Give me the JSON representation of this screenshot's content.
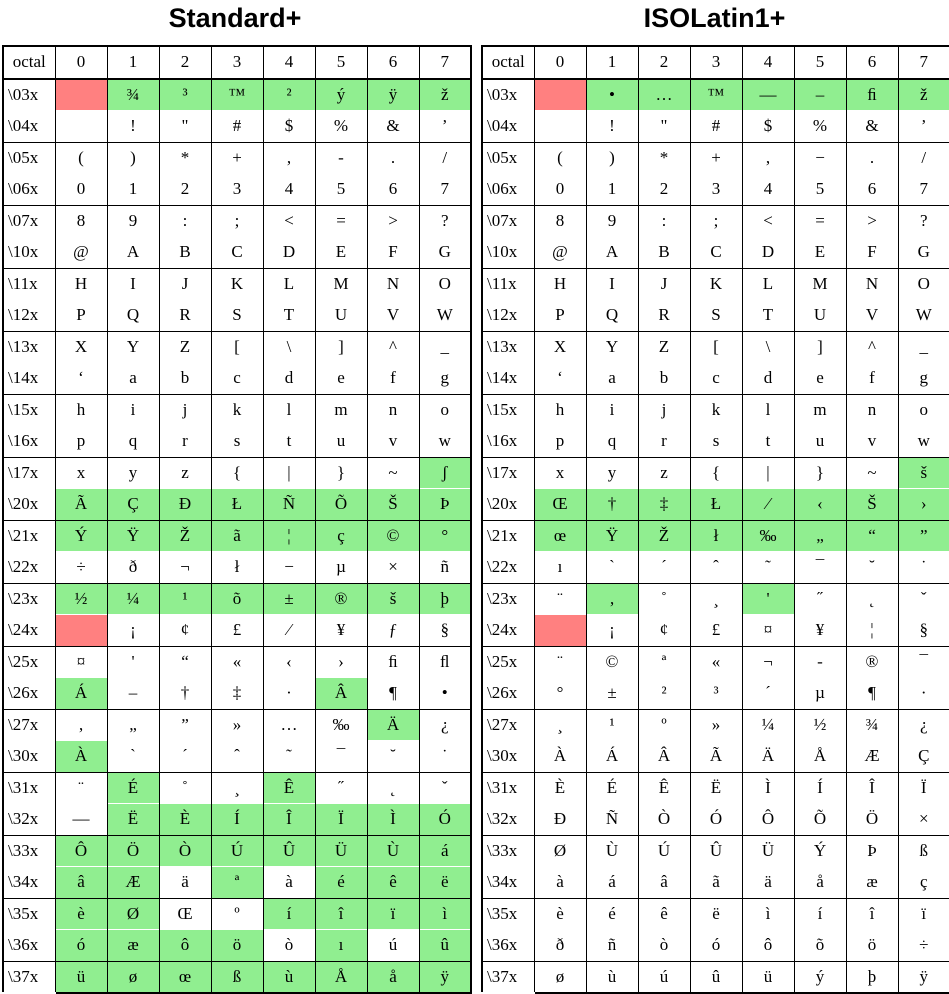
{
  "titles": {
    "left": "Standard+",
    "right": "ISOLatin1+"
  },
  "header": [
    "octal",
    "0",
    "1",
    "2",
    "3",
    "4",
    "5",
    "6",
    "7"
  ],
  "rows": [
    "\\03x",
    "\\04x",
    "\\05x",
    "\\06x",
    "\\07x",
    "\\10x",
    "\\11x",
    "\\12x",
    "\\13x",
    "\\14x",
    "\\15x",
    "\\16x",
    "\\17x",
    "\\20x",
    "\\21x",
    "\\22x",
    "\\23x",
    "\\24x",
    "\\25x",
    "\\26x",
    "\\27x",
    "\\30x",
    "\\31x",
    "\\32x",
    "\\33x",
    "\\34x",
    "\\35x",
    "\\36x",
    "\\37x"
  ],
  "colors": {
    "highlight": "#90ee90",
    "undefined": "#ff8080"
  },
  "standard": [
    [
      "",
      "¾",
      "³",
      "™",
      "²",
      "ý",
      "ÿ",
      "ž"
    ],
    [
      "",
      "!",
      "\"",
      "#",
      "$",
      "%",
      "&",
      "’"
    ],
    [
      "(",
      ")",
      "*",
      "+",
      ",",
      "-",
      ".",
      "/"
    ],
    [
      "0",
      "1",
      "2",
      "3",
      "4",
      "5",
      "6",
      "7"
    ],
    [
      "8",
      "9",
      ":",
      ";",
      "<",
      "=",
      ">",
      "?"
    ],
    [
      "@",
      "A",
      "B",
      "C",
      "D",
      "E",
      "F",
      "G"
    ],
    [
      "H",
      "I",
      "J",
      "K",
      "L",
      "M",
      "N",
      "O"
    ],
    [
      "P",
      "Q",
      "R",
      "S",
      "T",
      "U",
      "V",
      "W"
    ],
    [
      "X",
      "Y",
      "Z",
      "[",
      "\\",
      "]",
      "^",
      "_"
    ],
    [
      "‘",
      "a",
      "b",
      "c",
      "d",
      "e",
      "f",
      "g"
    ],
    [
      "h",
      "i",
      "j",
      "k",
      "l",
      "m",
      "n",
      "o"
    ],
    [
      "p",
      "q",
      "r",
      "s",
      "t",
      "u",
      "v",
      "w"
    ],
    [
      "x",
      "y",
      "z",
      "{",
      "|",
      "}",
      "~",
      "ʃ"
    ],
    [
      "Ã",
      "Ç",
      "Đ",
      "Ł",
      "Ñ",
      "Õ",
      "Š",
      "Þ"
    ],
    [
      "Ý",
      "Ÿ",
      "Ž",
      "ã",
      "¦",
      "ç",
      "©",
      "°"
    ],
    [
      "÷",
      "ð",
      "¬",
      "ł",
      "−",
      "µ",
      "×",
      "ñ"
    ],
    [
      "½",
      "¼",
      "¹",
      "õ",
      "±",
      "®",
      "š",
      "þ"
    ],
    [
      "",
      "¡",
      "¢",
      "£",
      "⁄",
      "¥",
      "ƒ",
      "§"
    ],
    [
      "¤",
      "'",
      "“",
      "«",
      "‹",
      "›",
      "ﬁ",
      "ﬂ"
    ],
    [
      "Á",
      "–",
      "†",
      "‡",
      "·",
      "Â",
      "¶",
      "•"
    ],
    [
      "‚",
      "„",
      "”",
      "»",
      "…",
      "‰",
      "Ä",
      "¿"
    ],
    [
      "À",
      "`",
      "´",
      "ˆ",
      "˜",
      "¯",
      "˘",
      "˙"
    ],
    [
      "¨",
      "É",
      "˚",
      "¸",
      "Ê",
      "˝",
      "˛",
      "ˇ"
    ],
    [
      "—",
      "Ë",
      "È",
      "Í",
      "Î",
      "Ï",
      "Ì",
      "Ó"
    ],
    [
      "Ô",
      "Ö",
      "Ò",
      "Ú",
      "Û",
      "Ü",
      "Ù",
      "á"
    ],
    [
      "â",
      "Æ",
      "ä",
      "ª",
      "à",
      "é",
      "ê",
      "ë"
    ],
    [
      "è",
      "Ø",
      "Œ",
      "º",
      "í",
      "î",
      "ï",
      "ì"
    ],
    [
      "ó",
      "æ",
      "ô",
      "ö",
      "ò",
      "ı",
      "ú",
      "û"
    ],
    [
      "ü",
      "ø",
      "œ",
      "ß",
      "ù",
      "Å",
      "å",
      "ÿ"
    ]
  ],
  "isolatin": [
    [
      "",
      "•",
      "…",
      "™",
      "—",
      "–",
      "ﬁ",
      "ž"
    ],
    [
      "",
      "!",
      "\"",
      "#",
      "$",
      "%",
      "&",
      "’"
    ],
    [
      "(",
      ")",
      "*",
      "+",
      ",",
      "−",
      ".",
      "/"
    ],
    [
      "0",
      "1",
      "2",
      "3",
      "4",
      "5",
      "6",
      "7"
    ],
    [
      "8",
      "9",
      ":",
      ";",
      "<",
      "=",
      ">",
      "?"
    ],
    [
      "@",
      "A",
      "B",
      "C",
      "D",
      "E",
      "F",
      "G"
    ],
    [
      "H",
      "I",
      "J",
      "K",
      "L",
      "M",
      "N",
      "O"
    ],
    [
      "P",
      "Q",
      "R",
      "S",
      "T",
      "U",
      "V",
      "W"
    ],
    [
      "X",
      "Y",
      "Z",
      "[",
      "\\",
      "]",
      "^",
      "_"
    ],
    [
      "‘",
      "a",
      "b",
      "c",
      "d",
      "e",
      "f",
      "g"
    ],
    [
      "h",
      "i",
      "j",
      "k",
      "l",
      "m",
      "n",
      "o"
    ],
    [
      "p",
      "q",
      "r",
      "s",
      "t",
      "u",
      "v",
      "w"
    ],
    [
      "x",
      "y",
      "z",
      "{",
      "|",
      "}",
      "~",
      "š"
    ],
    [
      "Œ",
      "†",
      "‡",
      "Ł",
      "⁄",
      "‹",
      "Š",
      "›"
    ],
    [
      "œ",
      "Ÿ",
      "Ž",
      "ł",
      "‰",
      "„",
      "“",
      "”"
    ],
    [
      "ı",
      "`",
      "´",
      "ˆ",
      "˜",
      "¯",
      "˘",
      "˙"
    ],
    [
      "¨",
      "‚",
      "˚",
      "¸",
      "'",
      "˝",
      "˛",
      "ˇ"
    ],
    [
      "",
      "¡",
      "¢",
      "£",
      "¤",
      "¥",
      "¦",
      "§"
    ],
    [
      "¨",
      "©",
      "ª",
      "«",
      "¬",
      "-",
      "®",
      "¯"
    ],
    [
      "°",
      "±",
      "²",
      "³",
      "´",
      "µ",
      "¶",
      "·"
    ],
    [
      "¸",
      "¹",
      "º",
      "»",
      "¼",
      "½",
      "¾",
      "¿"
    ],
    [
      "À",
      "Á",
      "Â",
      "Ã",
      "Ä",
      "Å",
      "Æ",
      "Ç"
    ],
    [
      "È",
      "É",
      "Ê",
      "Ë",
      "Ì",
      "Í",
      "Î",
      "Ï"
    ],
    [
      "Đ",
      "Ñ",
      "Ò",
      "Ó",
      "Ô",
      "Õ",
      "Ö",
      "×"
    ],
    [
      "Ø",
      "Ù",
      "Ú",
      "Û",
      "Ü",
      "Ý",
      "Þ",
      "ß"
    ],
    [
      "à",
      "á",
      "â",
      "ã",
      "ä",
      "å",
      "æ",
      "ç"
    ],
    [
      "è",
      "é",
      "ê",
      "ë",
      "ì",
      "í",
      "î",
      "ï"
    ],
    [
      "ð",
      "ñ",
      "ò",
      "ó",
      "ô",
      "õ",
      "ö",
      "÷"
    ],
    [
      "ø",
      "ù",
      "ú",
      "û",
      "ü",
      "ý",
      "þ",
      "ÿ"
    ]
  ],
  "standard_marks": [
    "rggggggg",
    "........",
    "........",
    "........",
    "........",
    "........",
    "........",
    "........",
    "........",
    "........",
    "........",
    "........",
    ".......g",
    "gggggggg",
    "gggggggg",
    "........",
    "gggggggg",
    "r.......",
    "........",
    "g....g..",
    "......g.",
    "g.......",
    ".g..g...",
    ".ggggggg",
    "gggggggg",
    "gg.g.ggg",
    "gg..gggg",
    "gggg.g.g",
    "gggggggg"
  ],
  "isolatin_marks": [
    "rggggggg",
    "........",
    "........",
    "........",
    "........",
    "........",
    "........",
    "........",
    "........",
    "........",
    "........",
    "........",
    ".......g",
    "gggggggg",
    "gggggggg",
    "........",
    ".g..g...",
    "r.......",
    "........",
    "........",
    "........",
    "........",
    "........",
    "........",
    "........",
    "........",
    "........",
    "........",
    "........"
  ]
}
